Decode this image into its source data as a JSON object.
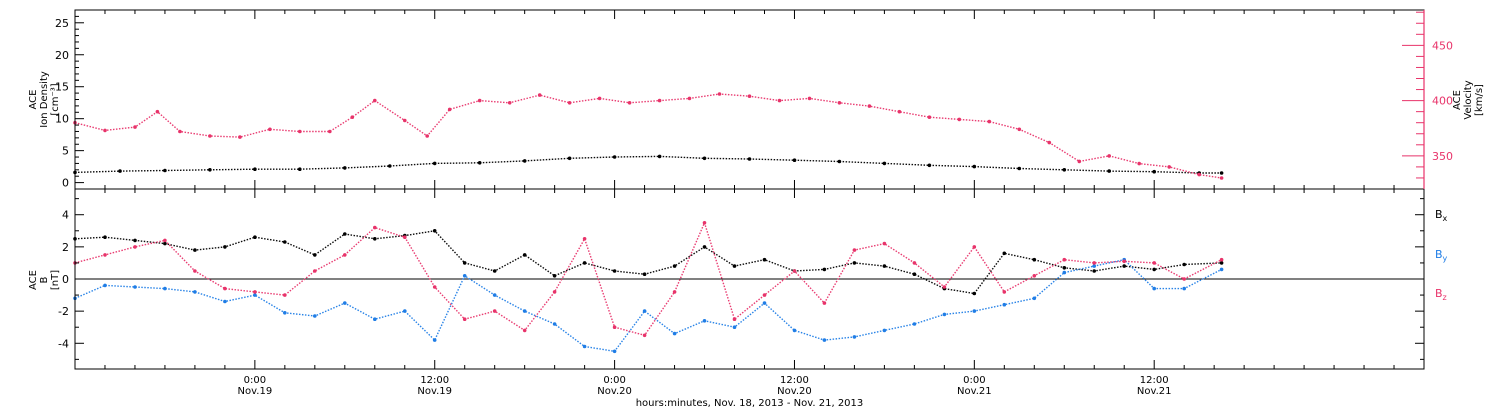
{
  "colors": {
    "black": "#000000",
    "density": "#000000",
    "velocity": "#e8336a",
    "bx": "#000000",
    "by": "#1f7de6",
    "bz": "#e8336a"
  },
  "chart_data": [
    {
      "type": "scatter",
      "panel": "top",
      "ylabel_left": [
        "ACE",
        "Ion Density",
        "[cm⁻³]"
      ],
      "ylabel_right": [
        "ACE",
        "Velocity",
        "[km/s]"
      ],
      "ylim_left": [
        -1,
        27
      ],
      "yticks_left": [
        0,
        5,
        10,
        15,
        20,
        25
      ],
      "ylim_right": [
        320,
        482
      ],
      "yticks_right": [
        350,
        400,
        450
      ],
      "series": [
        {
          "key": "density",
          "axis": "left",
          "x": [
            -12,
            -9,
            -6,
            -3,
            0,
            3,
            6,
            9,
            12,
            15,
            18,
            21,
            24,
            27,
            30,
            33,
            36,
            39,
            42,
            45,
            48,
            51,
            54,
            57,
            60,
            63,
            64.5
          ],
          "y": [
            1.6,
            1.8,
            1.9,
            2.0,
            2.1,
            2.1,
            2.3,
            2.6,
            3.0,
            3.1,
            3.4,
            3.8,
            4.0,
            4.1,
            3.8,
            3.7,
            3.5,
            3.3,
            3.0,
            2.7,
            2.5,
            2.2,
            2.0,
            1.8,
            1.7,
            1.5,
            1.5
          ]
        },
        {
          "key": "velocity",
          "axis": "right",
          "x": [
            -12,
            -10,
            -8,
            -6.5,
            -5,
            -3,
            -1,
            1,
            3,
            5,
            6.5,
            8,
            10,
            11.5,
            13,
            15,
            17,
            19,
            21,
            23,
            25,
            27,
            29,
            31,
            33,
            35,
            37,
            39,
            41,
            43,
            45,
            47,
            49,
            51,
            53,
            55,
            57,
            59,
            61,
            63,
            64.5
          ],
          "y": [
            380,
            373,
            376,
            390,
            372,
            368,
            367,
            374,
            372,
            372,
            385,
            400,
            382,
            368,
            392,
            400,
            398,
            405,
            398,
            402,
            398,
            400,
            402,
            406,
            404,
            400,
            402,
            398,
            395,
            390,
            385,
            383,
            381,
            374,
            362,
            345,
            350,
            343,
            340,
            333,
            330
          ]
        }
      ]
    },
    {
      "type": "scatter",
      "panel": "bottom",
      "ylabel_left": [
        "ACE",
        "B",
        "[nT]"
      ],
      "ylim": [
        -5.6,
        5.6
      ],
      "yticks": [
        -4,
        -2,
        0,
        2,
        4
      ],
      "zero_line": true,
      "series": [
        {
          "key": "bx",
          "name": "Bx",
          "x": [
            -12,
            -10,
            -8,
            -6,
            -4,
            -2,
            0,
            2,
            4,
            6,
            8,
            10,
            12,
            14,
            16,
            18,
            20,
            22,
            24,
            26,
            28,
            30,
            32,
            34,
            36,
            38,
            40,
            42,
            44,
            46,
            48,
            50,
            52,
            54,
            56,
            58,
            60,
            62,
            64.5
          ],
          "y": [
            2.5,
            2.6,
            2.4,
            2.2,
            1.8,
            2.0,
            2.6,
            2.3,
            1.5,
            2.8,
            2.5,
            2.7,
            3.0,
            1.0,
            0.5,
            1.5,
            0.2,
            1.0,
            0.5,
            0.3,
            0.8,
            2.0,
            0.8,
            1.2,
            0.5,
            0.6,
            1.0,
            0.8,
            0.3,
            -0.6,
            -0.9,
            1.6,
            1.2,
            0.7,
            0.5,
            0.8,
            0.6,
            0.9,
            1.0
          ]
        },
        {
          "key": "by",
          "name": "By",
          "x": [
            -12,
            -10,
            -8,
            -6,
            -4,
            -2,
            0,
            2,
            4,
            6,
            8,
            10,
            12,
            14,
            16,
            18,
            20,
            22,
            24,
            26,
            28,
            30,
            32,
            34,
            36,
            38,
            40,
            42,
            44,
            46,
            48,
            50,
            52,
            54,
            56,
            58,
            60,
            62,
            64.5
          ],
          "y": [
            -1.2,
            -0.4,
            -0.5,
            -0.6,
            -0.8,
            -1.4,
            -1.0,
            -2.1,
            -2.3,
            -1.5,
            -2.5,
            -2.0,
            -3.8,
            0.2,
            -1.0,
            -2.0,
            -2.8,
            -4.2,
            -4.5,
            -2.0,
            -3.4,
            -2.6,
            -3.0,
            -1.5,
            -3.2,
            -3.8,
            -3.6,
            -3.2,
            -2.8,
            -2.2,
            -2.0,
            -1.6,
            -1.2,
            0.4,
            0.8,
            1.2,
            -0.6,
            -0.6,
            0.6
          ]
        },
        {
          "key": "bz",
          "name": "Bz",
          "x": [
            -12,
            -10,
            -8,
            -6,
            -4,
            -2,
            0,
            2,
            4,
            6,
            8,
            10,
            12,
            14,
            16,
            18,
            20,
            22,
            24,
            26,
            28,
            30,
            32,
            34,
            36,
            38,
            40,
            42,
            44,
            46,
            48,
            50,
            52,
            54,
            56,
            58,
            60,
            62,
            64.5
          ],
          "y": [
            1.0,
            1.5,
            2.0,
            2.4,
            0.5,
            -0.6,
            -0.8,
            -1.0,
            0.5,
            1.5,
            3.2,
            2.6,
            -0.5,
            -2.5,
            -2.0,
            -3.2,
            -0.8,
            2.5,
            -3.0,
            -3.5,
            -0.8,
            3.5,
            -2.5,
            -1.0,
            0.5,
            -1.5,
            1.8,
            2.2,
            1.0,
            -0.5,
            2.0,
            -0.8,
            0.2,
            1.2,
            1.0,
            1.1,
            1.0,
            0.0,
            1.2
          ]
        }
      ],
      "legend": [
        "B",
        "B",
        "B"
      ],
      "legend_subscripts": [
        "x",
        "y",
        "z"
      ]
    }
  ],
  "x_axis": {
    "xlim": [
      -12,
      78
    ],
    "ticks": [
      0,
      12,
      24,
      36,
      48,
      60
    ],
    "tick_labels": [
      {
        "time": "0:00",
        "date": "Nov.19"
      },
      {
        "time": "12:00",
        "date": "Nov.19"
      },
      {
        "time": "0:00",
        "date": "Nov.20"
      },
      {
        "time": "12:00",
        "date": "Nov.20"
      },
      {
        "time": "0:00",
        "date": "Nov.21"
      },
      {
        "time": "12:00",
        "date": "Nov.21"
      }
    ],
    "minor_step_hours": 2,
    "xlabel": "hours:minutes, Nov. 18, 2013 - Nov. 21, 2013"
  }
}
